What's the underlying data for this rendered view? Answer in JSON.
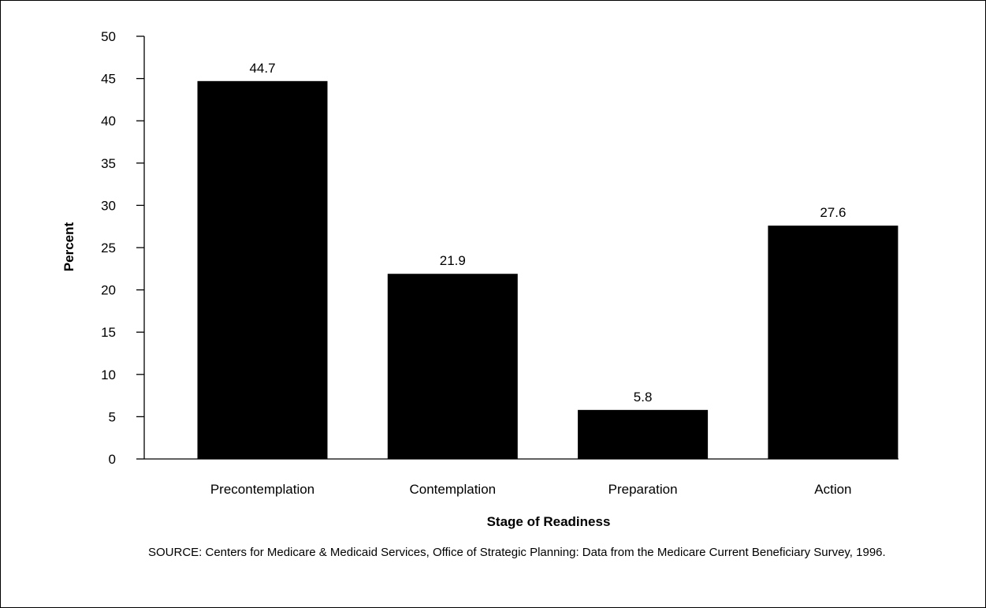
{
  "chart_data": {
    "type": "bar",
    "categories": [
      "Precontemplation",
      "Contemplation",
      "Preparation",
      "Action"
    ],
    "values": [
      44.7,
      21.9,
      5.8,
      27.6
    ],
    "data_labels": [
      "44.7",
      "21.9",
      "5.8",
      "27.6"
    ],
    "xlabel": "Stage of Readiness",
    "ylabel": "Percent",
    "ylim": [
      0,
      50
    ],
    "yticks": [
      0,
      5,
      10,
      15,
      20,
      25,
      30,
      35,
      40,
      45,
      50
    ],
    "bar_color": "#000000",
    "grid": false
  },
  "source_note": "SOURCE: Centers for Medicare & Medicaid Services, Office of Strategic Planning: Data from the Medicare Current Beneficiary Survey, 1996."
}
